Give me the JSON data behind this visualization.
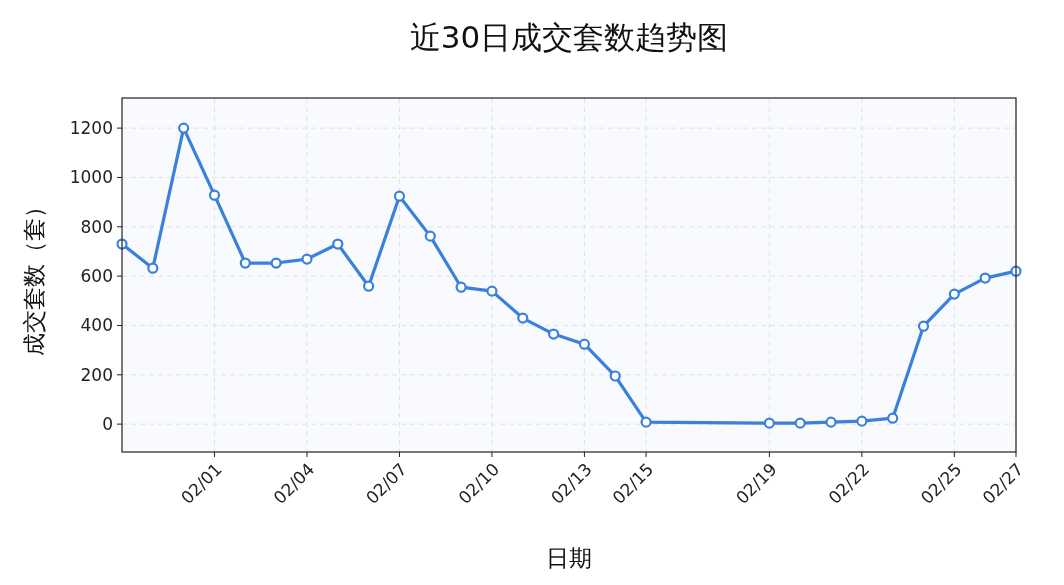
{
  "chart_data": {
    "type": "line",
    "title": "近30日成交套数趋势图",
    "xlabel": "日期",
    "ylabel": "成交套数（套）",
    "x": [
      "--01-29",
      "--01-30",
      "--01-31",
      "--02-01",
      "--02-02",
      "--02-03",
      "--02-04",
      "--02-05",
      "--02-06",
      "--02-07",
      "--02-08",
      "--02-09",
      "--02-10",
      "--02-11",
      "--02-12",
      "--02-13",
      "--02-14",
      "--02-15",
      "--02-19",
      "--02-20",
      "--02-21",
      "--02-22",
      "--02-23",
      "--02-24",
      "--02-25",
      "--02-26",
      "--02-27"
    ],
    "series": [
      {
        "color": "#3a80dc",
        "values": [
          730,
          632,
          1200,
          928,
          653,
          653,
          669,
          730,
          559,
          924,
          762,
          555,
          539,
          430,
          365,
          324,
          195,
          8,
          4,
          4,
          8,
          12,
          24,
          397,
          527,
          592,
          620
        ]
      }
    ],
    "xlim": [
      "--01-29",
      "--02-27"
    ],
    "xticks": [
      {
        "value": "--02-01",
        "label": "02/01"
      },
      {
        "value": "--02-04",
        "label": "02/04"
      },
      {
        "value": "--02-07",
        "label": "02/07"
      },
      {
        "value": "--02-10",
        "label": "02/10"
      },
      {
        "value": "--02-13",
        "label": "02/13"
      },
      {
        "value": "--02-15",
        "label": "02/15"
      },
      {
        "value": "--02-19",
        "label": "02/19"
      },
      {
        "value": "--02-22",
        "label": "02/22"
      },
      {
        "value": "--02-25",
        "label": "02/25"
      },
      {
        "value": "--02-27",
        "label": "02/27"
      }
    ],
    "ylim": [
      -113,
      1322
    ],
    "yticks": [
      0,
      200,
      400,
      600,
      800,
      1000,
      1200
    ],
    "grid": true,
    "marker": "circle",
    "line_style": "solid"
  }
}
